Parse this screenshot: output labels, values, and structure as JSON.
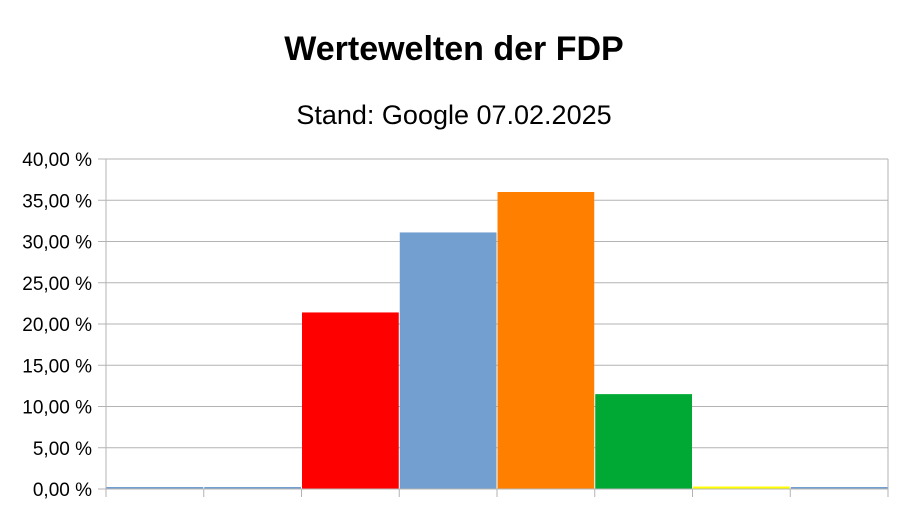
{
  "chart_data": {
    "type": "bar",
    "title": "Wertewelten der FDP",
    "subtitle": "Stand: Google 07.02.2025",
    "xlabel": "",
    "ylabel": "",
    "ylim": [
      0,
      40
    ],
    "yticks": [
      "0,00 %",
      "5,00 %",
      "10,00 %",
      "15,00 %",
      "20,00 %",
      "25,00 %",
      "30,00 %",
      "35,00 %",
      "40,00 %"
    ],
    "grid": true,
    "legend": "none",
    "categories": [
      "",
      "",
      "",
      "",
      "",
      "",
      "",
      ""
    ],
    "values": [
      0.15,
      0,
      21.4,
      31.1,
      36.0,
      11.5,
      0.3,
      0.1
    ],
    "colors": [
      "#729fcf",
      "#729fcf",
      "#ff0000",
      "#729fcf",
      "#ff8000",
      "#00a933",
      "#ffff00",
      "#729fcf"
    ]
  }
}
